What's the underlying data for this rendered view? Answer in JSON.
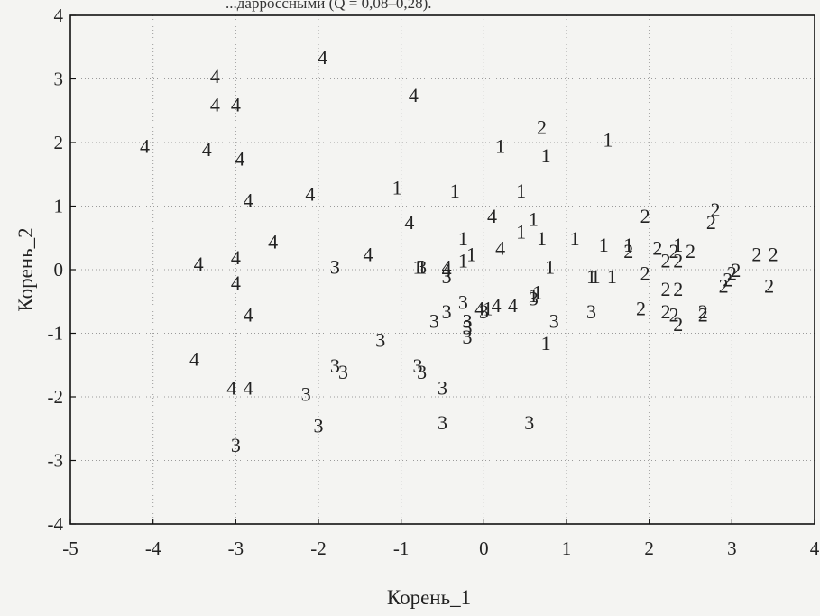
{
  "caption": "...дарроссными (Q = 0,08–0,28).",
  "chart_data": {
    "type": "scatter",
    "xlabel": "Корень_1",
    "ylabel": "Корень_2",
    "xlim": [
      -5,
      4
    ],
    "ylim": [
      -4,
      4
    ],
    "xticks": [
      -5,
      -4,
      -3,
      -2,
      -1,
      0,
      1,
      2,
      3,
      4
    ],
    "yticks": [
      -4,
      -3,
      -2,
      -1,
      0,
      1,
      2,
      3,
      4
    ],
    "grid": true,
    "marker": "group number",
    "series": [
      {
        "name": "1",
        "points": [
          [
            0.2,
            1.95
          ],
          [
            0.75,
            1.8
          ],
          [
            1.5,
            2.05
          ],
          [
            -1.05,
            1.3
          ],
          [
            -0.35,
            1.25
          ],
          [
            0.45,
            1.25
          ],
          [
            0.6,
            0.8
          ],
          [
            0.45,
            0.6
          ],
          [
            0.7,
            0.5
          ],
          [
            1.1,
            0.5
          ],
          [
            1.45,
            0.4
          ],
          [
            1.75,
            0.4
          ],
          [
            2.35,
            0.4
          ],
          [
            -0.25,
            0.5
          ],
          [
            -0.15,
            0.25
          ],
          [
            -0.25,
            0.15
          ],
          [
            -0.8,
            0.05
          ],
          [
            -0.75,
            0.05
          ],
          [
            0.8,
            0.05
          ],
          [
            1.3,
            -0.1
          ],
          [
            1.35,
            -0.1
          ],
          [
            1.55,
            -0.1
          ],
          [
            0.65,
            -0.35
          ],
          [
            0.6,
            -0.4
          ],
          [
            0.05,
            -0.6
          ],
          [
            0.75,
            -1.15
          ]
        ]
      },
      {
        "name": "2",
        "points": [
          [
            0.7,
            2.25
          ],
          [
            1.95,
            0.85
          ],
          [
            2.8,
            0.95
          ],
          [
            2.75,
            0.75
          ],
          [
            1.75,
            0.3
          ],
          [
            2.1,
            0.35
          ],
          [
            2.3,
            0.3
          ],
          [
            2.5,
            0.3
          ],
          [
            2.2,
            0.15
          ],
          [
            2.35,
            0.15
          ],
          [
            3.3,
            0.25
          ],
          [
            3.5,
            0.25
          ],
          [
            1.95,
            -0.05
          ],
          [
            3.05,
            0.0
          ],
          [
            3.0,
            -0.05
          ],
          [
            2.95,
            -0.15
          ],
          [
            3.45,
            -0.25
          ],
          [
            2.9,
            -0.25
          ],
          [
            2.2,
            -0.3
          ],
          [
            2.35,
            -0.3
          ],
          [
            1.9,
            -0.6
          ],
          [
            2.2,
            -0.65
          ],
          [
            2.3,
            -0.7
          ],
          [
            2.35,
            -0.85
          ],
          [
            2.65,
            -0.65
          ],
          [
            2.65,
            -0.7
          ]
        ]
      },
      {
        "name": "3",
        "points": [
          [
            -1.8,
            0.05
          ],
          [
            -0.75,
            0.05
          ],
          [
            -0.45,
            -0.1
          ],
          [
            -0.25,
            -0.5
          ],
          [
            -0.45,
            -0.65
          ],
          [
            -0.6,
            -0.8
          ],
          [
            -0.2,
            -0.8
          ],
          [
            -0.2,
            -0.9
          ],
          [
            -0.2,
            -1.05
          ],
          [
            0.0,
            -0.65
          ],
          [
            0.6,
            -0.45
          ],
          [
            0.85,
            -0.8
          ],
          [
            1.3,
            -0.65
          ],
          [
            -1.25,
            -1.1
          ],
          [
            -1.8,
            -1.5
          ],
          [
            -1.7,
            -1.6
          ],
          [
            -0.8,
            -1.5
          ],
          [
            -0.75,
            -1.6
          ],
          [
            -0.5,
            -1.85
          ],
          [
            -2.15,
            -1.95
          ],
          [
            -2.0,
            -2.45
          ],
          [
            -0.5,
            -2.4
          ],
          [
            0.55,
            -2.4
          ],
          [
            -3.0,
            -2.75
          ]
        ]
      },
      {
        "name": "4",
        "points": [
          [
            -1.95,
            3.35
          ],
          [
            -3.25,
            3.05
          ],
          [
            -0.85,
            2.75
          ],
          [
            -3.25,
            2.6
          ],
          [
            -3.0,
            2.6
          ],
          [
            -4.1,
            1.95
          ],
          [
            -3.35,
            1.9
          ],
          [
            -2.95,
            1.75
          ],
          [
            -2.1,
            1.2
          ],
          [
            -2.85,
            1.1
          ],
          [
            0.1,
            0.85
          ],
          [
            -0.9,
            0.75
          ],
          [
            -2.55,
            0.45
          ],
          [
            -1.4,
            0.25
          ],
          [
            0.2,
            0.35
          ],
          [
            -3.0,
            0.2
          ],
          [
            -3.45,
            0.1
          ],
          [
            -0.45,
            0.05
          ],
          [
            -0.45,
            0.0
          ],
          [
            -3.0,
            -0.2
          ],
          [
            -0.05,
            -0.6
          ],
          [
            0.15,
            -0.55
          ],
          [
            0.35,
            -0.55
          ],
          [
            -2.85,
            -0.7
          ],
          [
            -3.5,
            -1.4
          ],
          [
            -3.05,
            -1.85
          ],
          [
            -2.85,
            -1.85
          ]
        ]
      }
    ]
  }
}
